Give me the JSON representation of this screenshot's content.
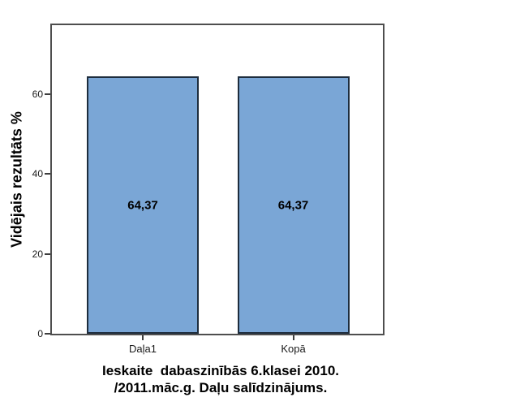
{
  "chart_data": {
    "type": "bar",
    "title": "Ieskaite  dabaszinībās 6.klasei 2010. /2011.māc.g. Daļu salīdzinājums.",
    "title_lines": [
      "Ieskaite  dabaszinībās 6.klasei 2010.",
      "/2011.māc.g. Daļu salīdzinājums."
    ],
    "ylabel": "Vidējais rezultāts %",
    "xlabel": "",
    "categories": [
      "Daļa1",
      "Kopā"
    ],
    "values": [
      64.37,
      64.37
    ],
    "value_labels": [
      "64,37",
      "64,37"
    ],
    "yticks": [
      0,
      20,
      40,
      60
    ],
    "ylim": [
      0,
      77.6
    ],
    "grid": false,
    "legend": "none",
    "colors": {
      "bar_fill": "#7aa6d6",
      "bar_border": "#1e2d3d",
      "frame": "#4e4e4e",
      "text": "#000000"
    }
  }
}
